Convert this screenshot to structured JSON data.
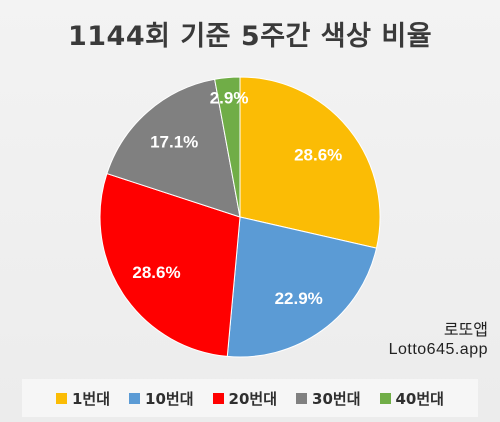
{
  "chart_data": {
    "type": "pie",
    "title": "1144회 기준 5주간 색상 비율",
    "categories": [
      "1번대",
      "10번대",
      "20번대",
      "30번대",
      "40번대"
    ],
    "values": [
      28.6,
      22.9,
      28.6,
      17.1,
      2.9
    ],
    "labels": [
      "28.6%",
      "22.9%",
      "28.6%",
      "17.1%",
      "2.9%"
    ],
    "colors": [
      "#fbbc05",
      "#5b9bd5",
      "#ff0000",
      "#808080",
      "#70ad47"
    ],
    "start_angle_deg": 0,
    "direction": "clockwise",
    "legend_position": "bottom"
  },
  "watermark": {
    "line1": "로또앱",
    "line2": "Lotto645.app"
  }
}
